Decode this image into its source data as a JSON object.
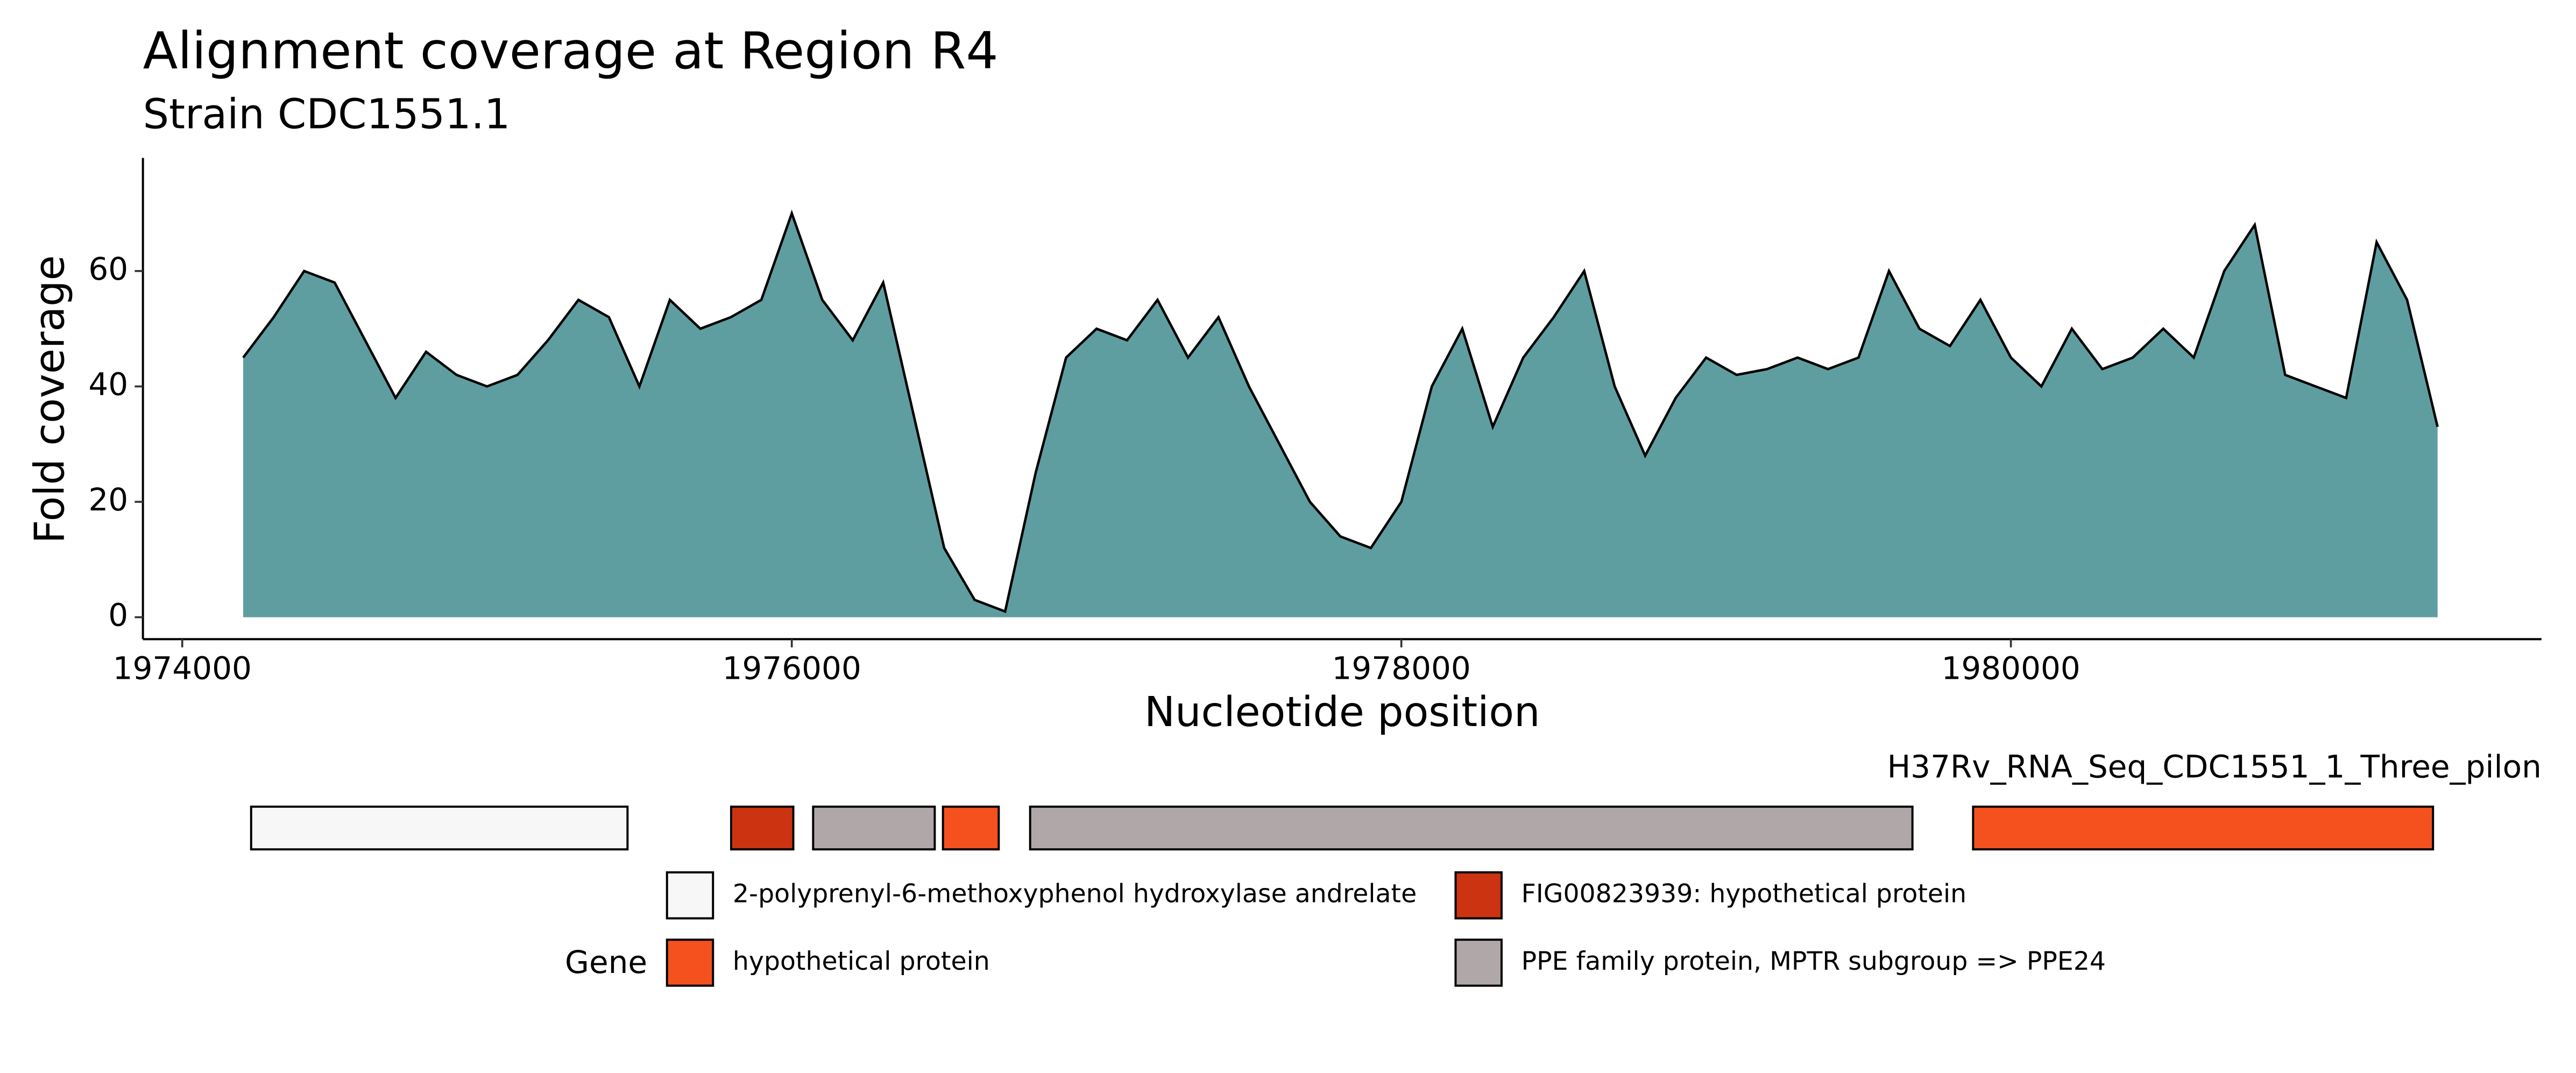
{
  "chart_data": [
    {
      "type": "area",
      "title": "Alignment coverage at Region R4",
      "subtitle": "Strain CDC1551.1",
      "x_label": "Nucleotide position",
      "y_label": "Fold coverage",
      "fill_color": "#5f9ea0",
      "line_color": "#000000",
      "xlim": [
        1973871,
        1981741
      ],
      "ylim": [
        -3.8,
        79.6
      ],
      "xticks": [
        1974000,
        1976000,
        1978000,
        1980000
      ],
      "yticks": [
        0,
        20,
        40,
        60
      ],
      "x": [
        1974200,
        1974300,
        1974400,
        1974500,
        1974600,
        1974700,
        1974800,
        1974900,
        1975000,
        1975100,
        1975200,
        1975300,
        1975400,
        1975500,
        1975600,
        1975700,
        1975800,
        1975900,
        1976000,
        1976100,
        1976200,
        1976300,
        1976400,
        1976500,
        1976600,
        1976700,
        1976800,
        1976900,
        1977000,
        1977100,
        1977200,
        1977300,
        1977400,
        1977500,
        1977600,
        1977700,
        1977800,
        1977900,
        1978000,
        1978100,
        1978200,
        1978300,
        1978400,
        1978500,
        1978600,
        1978700,
        1978800,
        1978900,
        1979000,
        1979100,
        1979200,
        1979300,
        1979400,
        1979500,
        1979600,
        1979700,
        1979800,
        1979900,
        1980000,
        1980100,
        1980200,
        1980300,
        1980400,
        1980500,
        1980600,
        1980700,
        1980800,
        1980900,
        1981000,
        1981100,
        1981200,
        1981300,
        1981400
      ],
      "values": [
        45,
        52,
        60,
        58,
        48,
        38,
        46,
        42,
        40,
        42,
        48,
        55,
        52,
        40,
        55,
        50,
        52,
        55,
        70,
        55,
        48,
        58,
        35,
        12,
        3,
        1,
        25,
        45,
        50,
        48,
        55,
        45,
        52,
        40,
        30,
        20,
        14,
        12,
        20,
        40,
        50,
        33,
        45,
        52,
        60,
        40,
        28,
        38,
        45,
        42,
        43,
        45,
        43,
        45,
        60,
        50,
        47,
        55,
        45,
        40,
        50,
        43,
        45,
        50,
        45,
        60,
        68,
        42,
        40,
        38,
        65,
        55,
        33
      ]
    },
    {
      "type": "gene-track",
      "track_label": "H37Rv_RNA_Seq_CDC1551_1_Three_pilon",
      "legend_title": "Gene",
      "legend": [
        {
          "name": "2-polyprenyl-6-methoxyphenol hydroxylase andrelate",
          "color": "#f7f7f7"
        },
        {
          "name": "FIG00823939: hypothetical protein",
          "color": "#cc3311"
        },
        {
          "name": "hypothetical protein",
          "color": "#f4511e"
        },
        {
          "name": "PPE family protein, MPTR subgroup => PPE24",
          "color": "#b0a8a8"
        }
      ],
      "genes": [
        {
          "start": 1974226,
          "end": 1975461,
          "gene": 0
        },
        {
          "start": 1975801,
          "end": 1976005,
          "gene": 1
        },
        {
          "start": 1976070,
          "end": 1976469,
          "gene": 3
        },
        {
          "start": 1976496,
          "end": 1976679,
          "gene": 2
        },
        {
          "start": 1976782,
          "end": 1979677,
          "gene": 3
        },
        {
          "start": 1979876,
          "end": 1981385,
          "gene": 2
        }
      ]
    }
  ]
}
